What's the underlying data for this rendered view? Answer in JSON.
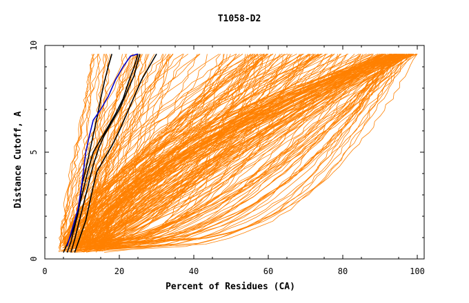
{
  "chart_data": {
    "type": "line",
    "title": "T1058-D2",
    "xlabel": "Percent of Residues (CA)",
    "ylabel": "Distance Cutoff, A",
    "xlim": [
      0,
      100
    ],
    "ylim": [
      0,
      10
    ],
    "xticks": [
      "0",
      "20",
      "40",
      "60",
      "80",
      "100"
    ],
    "yticks": [
      "0",
      "5",
      "10"
    ],
    "grid": false,
    "legend": "none",
    "colors": {
      "bulk": "#ff8000",
      "highlight_dark": "#000000",
      "highlight_blue": "#0000cc"
    },
    "highlight_series": [
      {
        "color": "#000000",
        "points": [
          [
            6,
            0.3
          ],
          [
            7,
            0.8
          ],
          [
            8,
            1.5
          ],
          [
            9,
            2.2
          ],
          [
            9.5,
            2.8
          ],
          [
            10,
            3.5
          ],
          [
            11,
            4.2
          ],
          [
            12,
            5.0
          ],
          [
            13,
            5.8
          ],
          [
            14,
            6.6
          ],
          [
            15,
            7.5
          ],
          [
            16,
            8.3
          ],
          [
            17,
            9.0
          ],
          [
            18,
            9.6
          ]
        ]
      },
      {
        "color": "#000000",
        "points": [
          [
            7,
            0.3
          ],
          [
            8,
            0.9
          ],
          [
            9,
            1.6
          ],
          [
            10,
            2.3
          ],
          [
            11,
            3.0
          ],
          [
            12,
            3.7
          ],
          [
            13,
            4.4
          ],
          [
            14.5,
            5.2
          ],
          [
            16,
            5.8
          ],
          [
            18,
            6.4
          ],
          [
            20,
            7.0
          ],
          [
            22,
            7.8
          ],
          [
            24,
            8.6
          ],
          [
            25.5,
            9.6
          ]
        ]
      },
      {
        "color": "#000000",
        "points": [
          [
            8,
            0.3
          ],
          [
            9,
            0.8
          ],
          [
            10,
            1.3
          ],
          [
            11,
            1.8
          ],
          [
            12,
            2.6
          ],
          [
            13,
            3.4
          ],
          [
            14,
            4.1
          ],
          [
            16,
            4.7
          ],
          [
            18,
            5.3
          ],
          [
            20,
            6.0
          ],
          [
            22,
            6.8
          ],
          [
            24,
            7.6
          ],
          [
            26,
            8.4
          ],
          [
            28,
            9.0
          ],
          [
            30,
            9.6
          ]
        ]
      },
      {
        "color": "#000000",
        "points": [
          [
            5,
            0.3
          ],
          [
            6,
            0.7
          ],
          [
            7,
            1.1
          ],
          [
            8,
            1.6
          ],
          [
            9,
            2.3
          ],
          [
            10,
            3.0
          ],
          [
            11,
            3.7
          ],
          [
            12,
            4.4
          ],
          [
            13,
            5.0
          ],
          [
            15,
            5.6
          ],
          [
            17,
            6.2
          ],
          [
            19,
            6.8
          ],
          [
            21,
            7.5
          ],
          [
            22.5,
            8.3
          ],
          [
            24,
            9.0
          ],
          [
            25,
            9.6
          ]
        ]
      },
      {
        "color": "#0000cc",
        "points": [
          [
            6,
            0.6
          ],
          [
            7,
            1.2
          ],
          [
            8,
            1.8
          ],
          [
            9,
            2.4
          ],
          [
            9.5,
            3.0
          ],
          [
            10,
            3.6
          ],
          [
            10.5,
            4.3
          ],
          [
            11,
            5.0
          ],
          [
            12,
            5.8
          ],
          [
            13,
            6.5
          ],
          [
            15,
            7.0
          ],
          [
            17,
            7.6
          ],
          [
            19,
            8.4
          ],
          [
            21,
            9.0
          ],
          [
            23,
            9.5
          ],
          [
            25,
            9.6
          ]
        ]
      }
    ],
    "bulk_series_summary": "several hundred orange model curves, each rising from about 0.3 A toward 9.6 A as percent of residues increases; curves spread from ~5% to 100% of residues"
  }
}
